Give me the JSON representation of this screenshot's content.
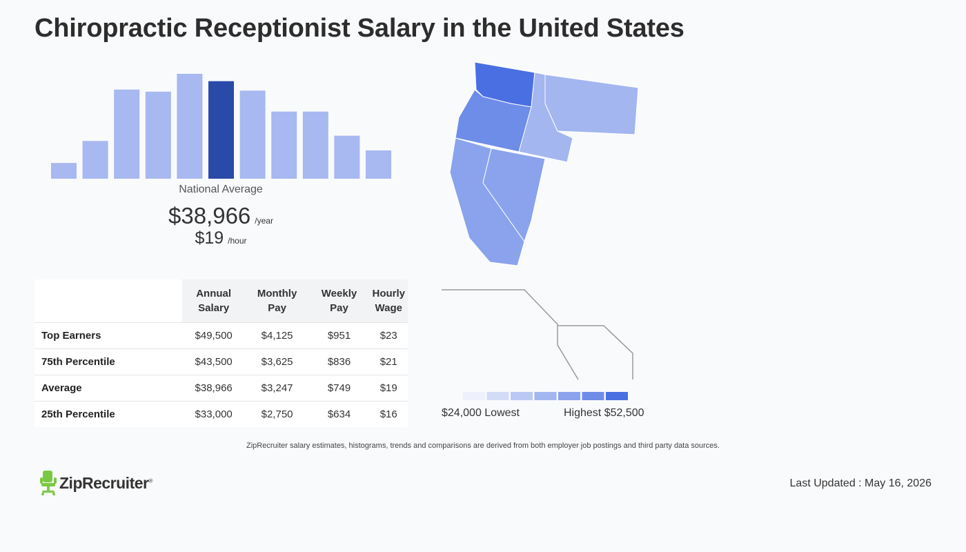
{
  "page": {
    "title": "Chiropractic Receptionist Salary in the United States"
  },
  "summary": {
    "label": "National Average",
    "annual": "$38,966",
    "annual_unit": "/year",
    "hourly": "$19",
    "hourly_unit": "/hour"
  },
  "chart_data": {
    "type": "bar",
    "categories": [
      "1",
      "2",
      "3",
      "4",
      "5",
      "6",
      "7",
      "8",
      "9",
      "10",
      "11"
    ],
    "values": [
      0.15,
      0.36,
      0.85,
      0.83,
      1.0,
      0.93,
      0.84,
      0.64,
      0.64,
      0.41,
      0.27
    ],
    "highlight_index": 5,
    "colors": {
      "bar": "#a8b8f0",
      "highlight": "#2a4aa8"
    }
  },
  "table": {
    "headers": [
      [
        "Annual",
        "Salary"
      ],
      [
        "Monthly",
        "Pay"
      ],
      [
        "Weekly",
        "Pay"
      ],
      [
        "Hourly",
        "Wage"
      ]
    ],
    "rows": [
      {
        "label": "Top Earners",
        "values": [
          "$49,500",
          "$4,125",
          "$951",
          "$23"
        ]
      },
      {
        "label": "75th Percentile",
        "values": [
          "$43,500",
          "$3,625",
          "$836",
          "$21"
        ]
      },
      {
        "label": "Average",
        "values": [
          "$38,966",
          "$3,247",
          "$749",
          "$19"
        ]
      },
      {
        "label": "25th Percentile",
        "values": [
          "$33,000",
          "$2,750",
          "$634",
          "$16"
        ]
      }
    ]
  },
  "map": {
    "legend_low": "$24,000 Lowest",
    "legend_high": "Highest $52,500",
    "scale_colors": [
      "#eef1fb",
      "#d3dcf7",
      "#bac9f4",
      "#a3b6f0",
      "#8aa3ec",
      "#6e8de8",
      "#4a6fe3"
    ]
  },
  "footer": {
    "disclaimer": "ZipRecruiter salary estimates, histograms, trends and comparisons are derived from both employer job postings and third party data sources.",
    "brand": "ZipRecruiter",
    "brand_mark": "®",
    "last_updated": "Last Updated : May 16, 2026"
  }
}
